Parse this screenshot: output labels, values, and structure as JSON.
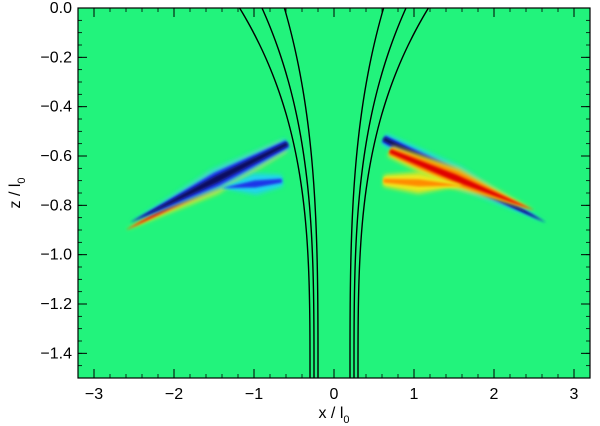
{
  "chart_data": {
    "type": "heatmap",
    "title": "",
    "xlabel": {
      "text": "x / l",
      "sub": "0"
    },
    "ylabel": {
      "text": "z / l",
      "sub": "0"
    },
    "xlim": [
      -3.2,
      3.2
    ],
    "ylim": [
      -1.5,
      0.0
    ],
    "xticks": [
      -3,
      -2,
      -1,
      0,
      1,
      2,
      3
    ],
    "xtick_labels": [
      "−3",
      "−2",
      "−1",
      "0",
      "1",
      "2",
      "3"
    ],
    "yticks": [
      0.0,
      -0.2,
      -0.4,
      -0.6,
      -0.8,
      -1.0,
      -1.2,
      -1.4
    ],
    "ytick_labels": [
      "0.0",
      "−0.2",
      "−0.4",
      "−0.6",
      "−0.8",
      "−1.0",
      "−1.2",
      "−1.4"
    ],
    "background_color": "#22f37c",
    "colormap": {
      "positive_outer": "#f2e61a",
      "positive_mid": "#ff8c00",
      "positive_peak": "#e00000",
      "negative_outer": "#22d3f2",
      "negative_mid": "#1f35e8",
      "negative_peak": "#0a0a60"
    },
    "field_lines": [
      {
        "apex_x": 0.2,
        "top_x": 0.62
      },
      {
        "apex_x": 0.25,
        "top_x": 0.9
      },
      {
        "apex_x": 0.3,
        "top_x": 1.18
      }
    ],
    "wave_features": [
      {
        "side": "left",
        "start": [
          -0.62,
          -0.54
        ],
        "end": [
          -2.6,
          -0.88
        ],
        "polarity": "positive",
        "offset": -0.02
      },
      {
        "side": "left",
        "start": [
          -0.58,
          -0.58
        ],
        "end": [
          -2.55,
          -0.9
        ],
        "polarity": "negative",
        "offset": 0.03
      },
      {
        "side": "left",
        "start": [
          -0.65,
          -0.7
        ],
        "end": [
          -1.4,
          -0.73
        ],
        "polarity": "negative_light",
        "offset": 0.0
      },
      {
        "side": "right",
        "start": [
          0.62,
          -0.53
        ],
        "end": [
          2.65,
          -0.87
        ],
        "polarity": "negative",
        "offset": 0.0
      },
      {
        "side": "right",
        "start": [
          0.7,
          -0.62
        ],
        "end": [
          2.5,
          -0.86
        ],
        "polarity": "positive",
        "offset": 0.04
      },
      {
        "side": "right",
        "start": [
          0.62,
          -0.7
        ],
        "end": [
          1.6,
          -0.72
        ],
        "polarity": "positive_light",
        "offset": 0.0
      }
    ]
  }
}
